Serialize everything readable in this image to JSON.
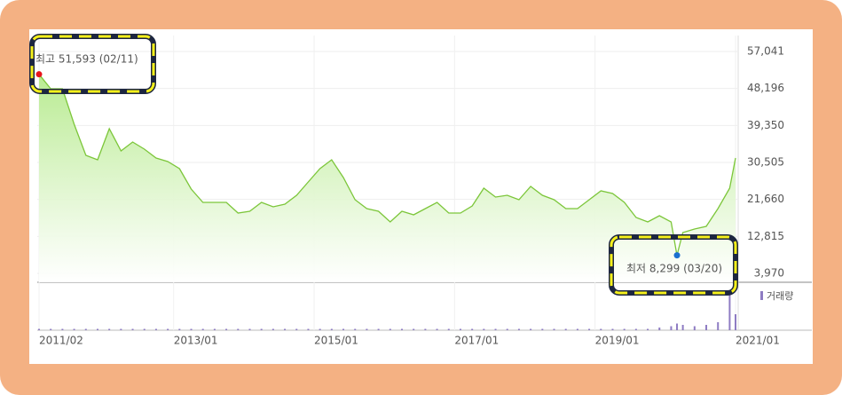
{
  "chart_data": {
    "type": "line",
    "x": [
      "2011/02",
      "2011/04",
      "2011/06",
      "2011/08",
      "2011/10",
      "2011/12",
      "2012/02",
      "2012/04",
      "2012/06",
      "2012/08",
      "2012/10",
      "2012/12",
      "2013/02",
      "2013/04",
      "2013/06",
      "2013/08",
      "2013/10",
      "2013/12",
      "2014/02",
      "2014/04",
      "2014/06",
      "2014/08",
      "2014/10",
      "2014/12",
      "2015/02",
      "2015/04",
      "2015/06",
      "2015/08",
      "2015/10",
      "2015/12",
      "2016/02",
      "2016/04",
      "2016/06",
      "2016/08",
      "2016/10",
      "2016/12",
      "2017/02",
      "2017/04",
      "2017/06",
      "2017/08",
      "2017/10",
      "2017/12",
      "2018/02",
      "2018/04",
      "2018/06",
      "2018/08",
      "2018/10",
      "2018/12",
      "2019/02",
      "2019/04",
      "2019/06",
      "2019/08",
      "2019/10",
      "2019/12",
      "2020/02",
      "2020/03",
      "2020/04",
      "2020/06",
      "2020/08",
      "2020/10",
      "2020/12",
      "2021/01"
    ],
    "series": [
      {
        "color": "#7cc63a",
        "values": [
          51593,
          48130,
          48130,
          39640,
          32200,
          31150,
          38570,
          33270,
          35390,
          33690,
          31570,
          30720,
          29020,
          24140,
          20950,
          20950,
          20950,
          18410,
          18830,
          20950,
          19890,
          20530,
          22650,
          25840,
          29020,
          31150,
          26900,
          21590,
          19470,
          18830,
          16280,
          18830,
          17980,
          19470,
          20950,
          18410,
          18410,
          20110,
          24350,
          22230,
          22650,
          21590,
          24780,
          22650,
          21590,
          19470,
          19470,
          21590,
          23710,
          23080,
          20950,
          17340,
          16280,
          17770,
          16280,
          8299,
          13740,
          14590,
          15220,
          19470,
          24350,
          31570
        ]
      },
      {
        "name": "거래량",
        "color": "#8e7cc3",
        "values": [
          1,
          1,
          1,
          1,
          1,
          1,
          1,
          1,
          1,
          1,
          1,
          1,
          1,
          1,
          1,
          1,
          1,
          1,
          1,
          1,
          1,
          1,
          1,
          1,
          1,
          1,
          1,
          1,
          1,
          1,
          1,
          1,
          1,
          1,
          1,
          1,
          1,
          1,
          1,
          1,
          1,
          1,
          1,
          1,
          1,
          1,
          1,
          1,
          1,
          1,
          1,
          1,
          1,
          2,
          3,
          5,
          4,
          3,
          4,
          6,
          30,
          12
        ]
      }
    ],
    "high": {
      "label": "최고 51,593 (02/11)",
      "x": "2011/02",
      "value": 51593,
      "color": "#e8141b"
    },
    "low": {
      "label": "최저 8,299 (03/20)",
      "x": "2020/03",
      "value": 8299,
      "color": "#1a6fd0"
    },
    "xlim": [
      "2011/02",
      "2021/01"
    ],
    "xticks": [
      "2011/02",
      "2013/01",
      "2015/01",
      "2017/01",
      "2019/01",
      "2021/01"
    ],
    "ylim": [
      3970,
      57041
    ],
    "yticks": [
      {
        "value": 3970,
        "label": "3,970"
      },
      {
        "value": 12815,
        "label": "12,815"
      },
      {
        "value": 21660,
        "label": "21,660"
      },
      {
        "value": 30505,
        "label": "30,505"
      },
      {
        "value": 39350,
        "label": "39,350"
      },
      {
        "value": 48196,
        "label": "48,196"
      },
      {
        "value": 57041,
        "label": "57,041"
      }
    ],
    "grid": true
  }
}
